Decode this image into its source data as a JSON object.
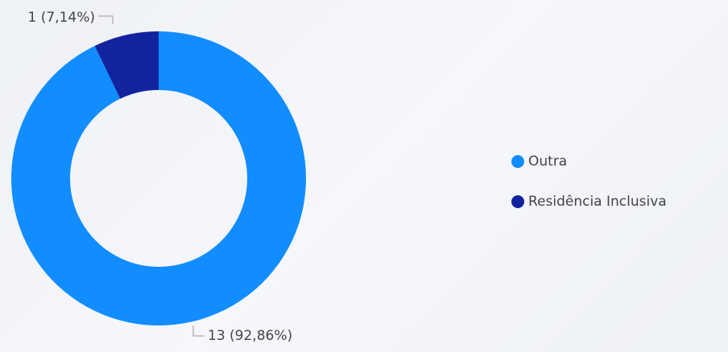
{
  "chart_data": {
    "type": "donut",
    "categories": [
      "Outra",
      "Residência Inclusiva"
    ],
    "values": [
      13,
      1
    ],
    "value_labels": [
      "13 (92,86%)",
      "1 (7,14%)"
    ],
    "colors": [
      "#118dff",
      "#12239e"
    ],
    "legend": "right"
  }
}
